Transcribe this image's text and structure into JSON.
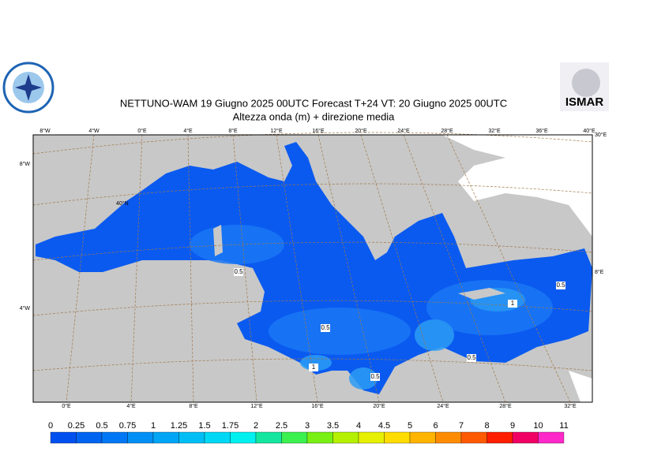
{
  "header": {
    "title": "NETTUNO-WAM  19   Giugno  2025 00UTC Forecast T+24 VT: 20   Giugno  2025 00UTC",
    "subtitle": "Altezza onda (m) + direzione media",
    "logo_right": "ISMAR"
  },
  "map": {
    "top_labels": [
      "8°W",
      "4°W",
      "0°E",
      "4°E",
      "8°E",
      "12°E",
      "16°E",
      "20°E",
      "24°E",
      "28°E",
      "32°E",
      "36°E",
      "40°E"
    ],
    "bottom_labels": [
      "0°E",
      "4°E",
      "8°E",
      "12°E",
      "16°E",
      "20°E",
      "24°E",
      "28°E",
      "32°E"
    ],
    "left_labels": [
      "8°W",
      "4°W"
    ],
    "right_labels": [
      "30°E",
      "8°E"
    ],
    "inner_label": "40°N",
    "contour_labels": [
      "0.5",
      "0.5",
      "1",
      "0.5",
      "0.5",
      "0.5",
      "1"
    ]
  },
  "colorbar": {
    "ticks": [
      0,
      0.25,
      0.5,
      0.75,
      1,
      1.25,
      1.5,
      1.75,
      2,
      2.5,
      3,
      3.5,
      4,
      4.5,
      5,
      6,
      7,
      8,
      9,
      10,
      11
    ],
    "colors": [
      "#0050f0",
      "#0064f0",
      "#0078f5",
      "#0090f5",
      "#00a5f5",
      "#00bef5",
      "#00d7f5",
      "#00f0f0",
      "#14e6a0",
      "#3cf050",
      "#78f014",
      "#b4f000",
      "#e6f000",
      "#ffdc00",
      "#ffb400",
      "#ff8c00",
      "#ff5a00",
      "#ff1e00",
      "#f00064",
      "#ff28c8"
    ]
  }
}
